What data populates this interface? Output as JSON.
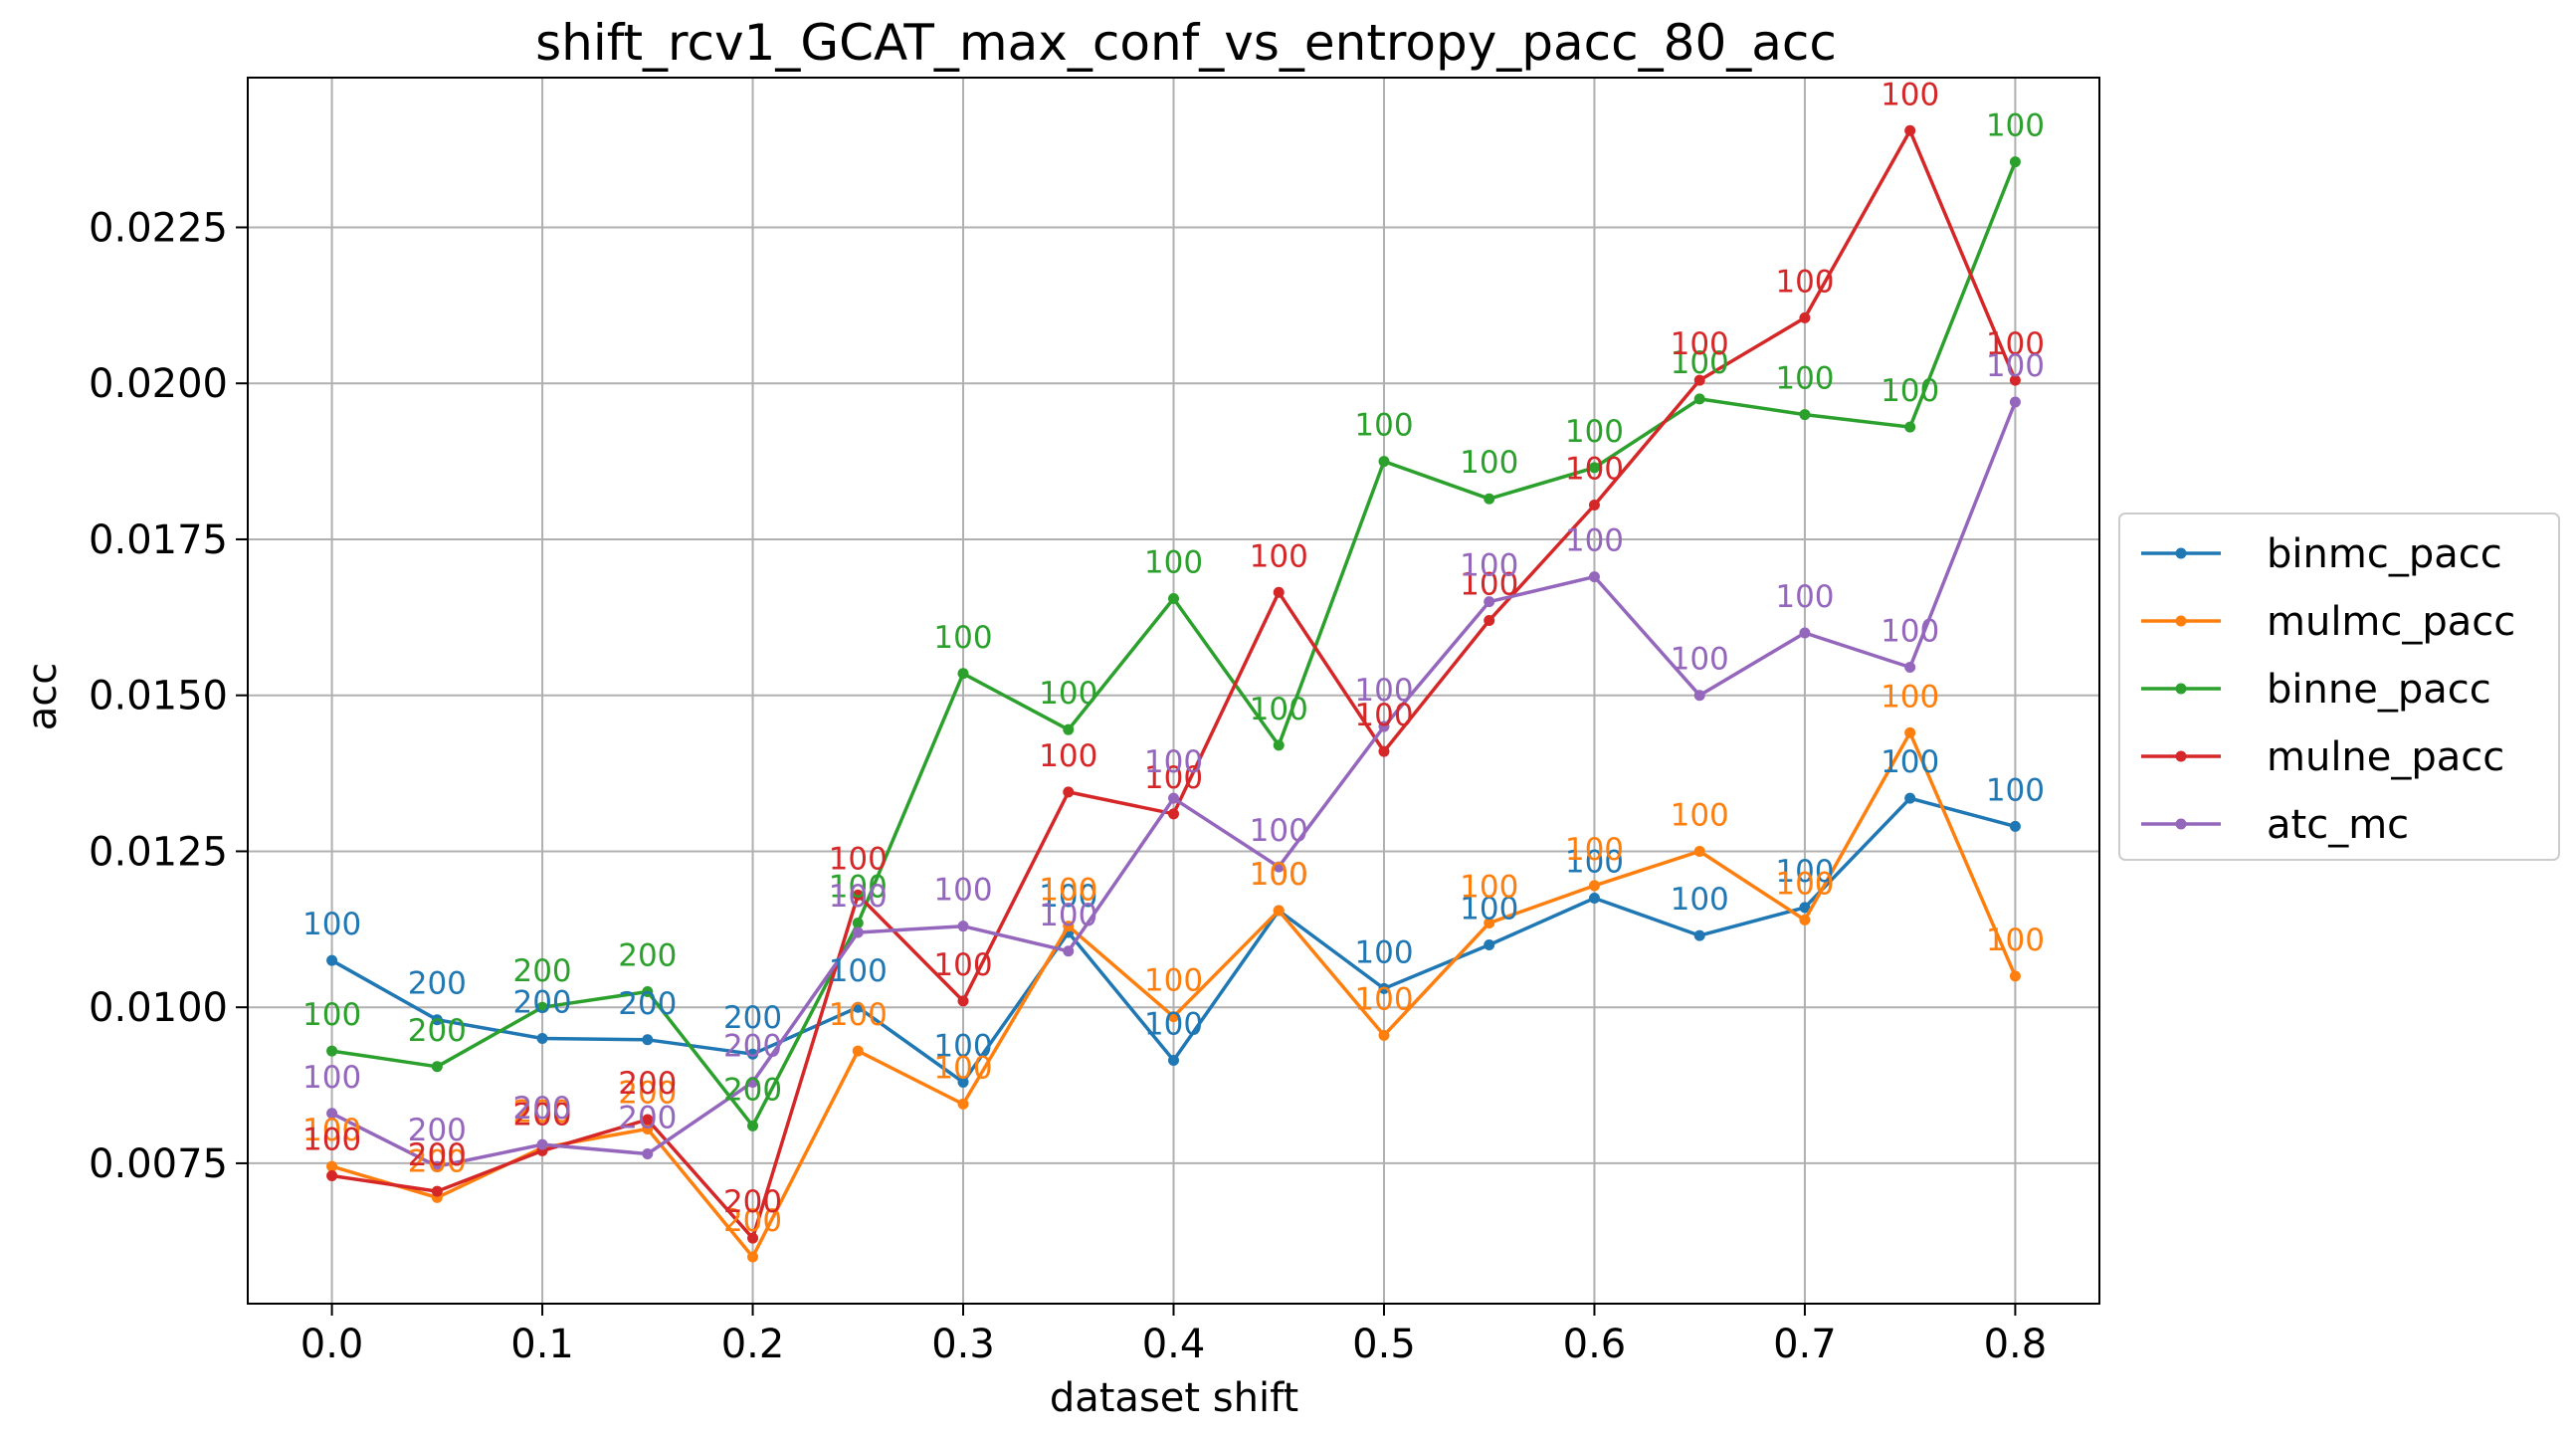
{
  "chart_data": {
    "type": "line",
    "title": "shift_rcv1_GCAT_max_conf_vs_entropy_pacc_80_acc",
    "xlabel": "dataset shift",
    "ylabel": "acc",
    "xlim": [
      -0.04,
      0.84
    ],
    "ylim": [
      0.00525,
      0.0249
    ],
    "x_ticks": [
      0.0,
      0.1,
      0.2,
      0.3,
      0.4,
      0.5,
      0.6,
      0.7,
      0.8
    ],
    "x_tick_labels": [
      "0.0",
      "0.1",
      "0.2",
      "0.3",
      "0.4",
      "0.5",
      "0.6",
      "0.7",
      "0.8"
    ],
    "y_ticks": [
      0.0075,
      0.01,
      0.0125,
      0.015,
      0.0175,
      0.02,
      0.0225
    ],
    "y_tick_labels": [
      "0.0075",
      "0.0100",
      "0.0125",
      "0.0150",
      "0.0175",
      "0.0200",
      "0.0225"
    ],
    "grid": true,
    "legend_position": "outside-right",
    "x": [
      0.0,
      0.05,
      0.1,
      0.15,
      0.2,
      0.25,
      0.3,
      0.35,
      0.4,
      0.45,
      0.5,
      0.55,
      0.6,
      0.65,
      0.7,
      0.75,
      0.8
    ],
    "series": [
      {
        "name": "binmc_pacc",
        "color": "#1f77b4",
        "values": [
          0.01075,
          0.0098,
          0.0095,
          0.00948,
          0.00925,
          0.01,
          0.0088,
          0.0112,
          0.00915,
          0.01155,
          0.0103,
          0.011,
          0.01175,
          0.01115,
          0.0116,
          0.01335,
          0.0129
        ],
        "labels": [
          "100",
          "200",
          "200",
          "200",
          "200",
          "100",
          "100",
          "100",
          "100",
          "100",
          "100",
          "100",
          "100",
          "100",
          "100",
          "100",
          "100"
        ]
      },
      {
        "name": "mulmc_pacc",
        "color": "#ff7f0e",
        "values": [
          0.00745,
          0.00695,
          0.00775,
          0.00805,
          0.006,
          0.0093,
          0.00845,
          0.0113,
          0.00985,
          0.01155,
          0.00955,
          0.01135,
          0.01195,
          0.0125,
          0.0114,
          0.0144,
          0.0105
        ],
        "labels": [
          "100",
          "200",
          "200",
          "200",
          "200",
          "100",
          "100",
          "100",
          "100",
          "100",
          "100",
          "100",
          "100",
          "100",
          "100",
          "100",
          "100"
        ]
      },
      {
        "name": "binne_pacc",
        "color": "#2ca02c",
        "values": [
          0.0093,
          0.00905,
          0.01,
          0.01025,
          0.0081,
          0.01135,
          0.01535,
          0.01445,
          0.01655,
          0.0142,
          0.01875,
          0.01815,
          0.01865,
          0.01975,
          0.0195,
          0.0193,
          0.02355
        ],
        "labels": [
          "100",
          "200",
          "200",
          "200",
          "200",
          "100",
          "100",
          "100",
          "100",
          "100",
          "100",
          "100",
          "100",
          "100",
          "100",
          "100",
          "100"
        ]
      },
      {
        "name": "mulne_pacc",
        "color": "#d62728",
        "values": [
          0.0073,
          0.00705,
          0.0077,
          0.0082,
          0.0063,
          0.0118,
          0.0101,
          0.01345,
          0.0131,
          0.01665,
          0.0141,
          0.0162,
          0.01805,
          0.02005,
          0.02105,
          0.02405,
          0.02005
        ],
        "labels": [
          "100",
          "200",
          "200",
          "200",
          "200",
          "100",
          "100",
          "100",
          "100",
          "100",
          "100",
          "100",
          "100",
          "100",
          "100",
          "100",
          "100"
        ]
      },
      {
        "name": "atc_mc",
        "color": "#9467bd",
        "values": [
          0.0083,
          0.00745,
          0.0078,
          0.00765,
          0.0088,
          0.0112,
          0.0113,
          0.0109,
          0.01335,
          0.01225,
          0.0145,
          0.0165,
          0.0169,
          0.015,
          0.016,
          0.01545,
          0.0197
        ],
        "labels": [
          "100",
          "200",
          "200",
          "200",
          "200",
          "100",
          "100",
          "100",
          "100",
          "100",
          "100",
          "100",
          "100",
          "100",
          "100",
          "100",
          "100"
        ]
      }
    ]
  }
}
